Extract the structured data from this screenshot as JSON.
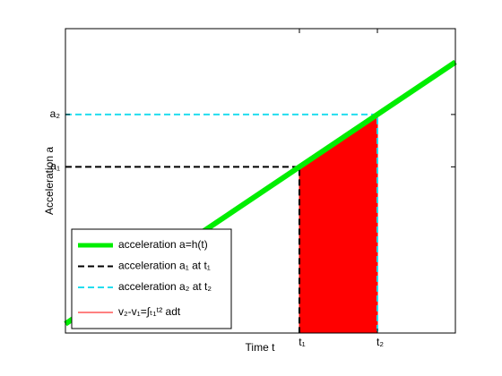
{
  "chart_data": {
    "type": "line",
    "xlabel": "Time t",
    "ylabel": "Acceleration a",
    "xlim": [
      0,
      10
    ],
    "ylim": [
      0,
      10
    ],
    "xticks": [
      {
        "value": 6,
        "label": "t₁"
      },
      {
        "value": 8,
        "label": "t₂"
      }
    ],
    "yticks": [
      {
        "value": 5.46,
        "label": "a₁"
      },
      {
        "value": 7.18,
        "label": "a₂"
      }
    ],
    "legend": "lower left",
    "series": [
      {
        "name": "acceleration a=h(t)",
        "color": "#00ee00",
        "width": 6,
        "x": [
          0,
          10
        ],
        "values": [
          0.3,
          8.9
        ]
      },
      {
        "name": "acceleration a₁ at t₁",
        "color": "#000000",
        "width": 2,
        "dashed": true,
        "x": [
          0,
          6,
          6
        ],
        "values": [
          5.46,
          5.46,
          0
        ]
      },
      {
        "name": "acceleration a₂ at t₂",
        "color": "#22ddee",
        "width": 2,
        "dashed": true,
        "x": [
          0,
          8,
          8
        ],
        "values": [
          7.18,
          7.18,
          0
        ]
      },
      {
        "name": "v₂-v₁=∫ₜ₁ᵗ² adt",
        "color": "#ff0000",
        "width": 1,
        "fill": true,
        "x": [
          6,
          8
        ],
        "values": [
          5.46,
          7.18
        ]
      }
    ]
  }
}
